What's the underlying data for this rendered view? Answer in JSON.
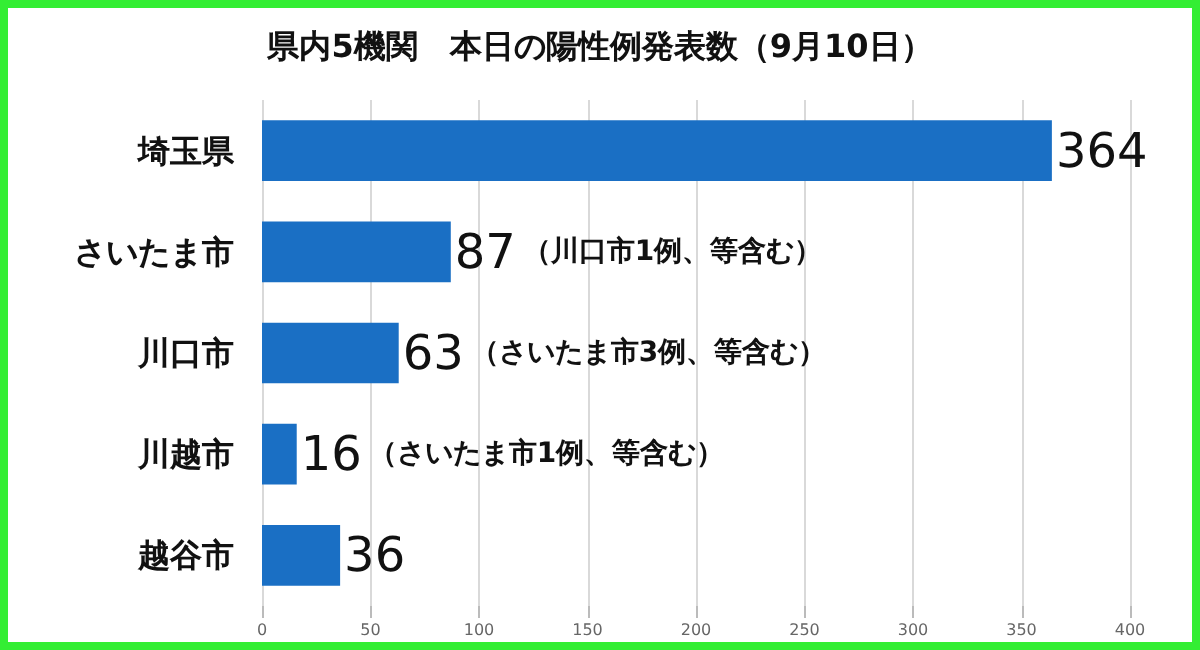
{
  "chart_data": {
    "type": "bar",
    "orientation": "horizontal",
    "title": "県内5機関　本日の陽性例発表数（9月10日）",
    "categories": [
      "埼玉県",
      "さいたま市",
      "川口市",
      "川越市",
      "越谷市"
    ],
    "values": [
      364,
      87,
      63,
      16,
      36
    ],
    "color": "#1a6fc4",
    "xlim": [
      0,
      400
    ],
    "xticks": [
      0,
      50,
      100,
      150,
      200,
      250,
      300,
      350,
      400
    ],
    "grid": "x",
    "data_labels": true,
    "annotations": [
      {
        "text": "（川口市1例、等含む）",
        "x": 87,
        "y": "さいたま市"
      },
      {
        "text": "（さいたま市3例、等含む）",
        "x": 63,
        "y": "川口市"
      },
      {
        "text": "（さいたま市1例、等含む）",
        "x": 16,
        "y": "川越市"
      }
    ]
  }
}
